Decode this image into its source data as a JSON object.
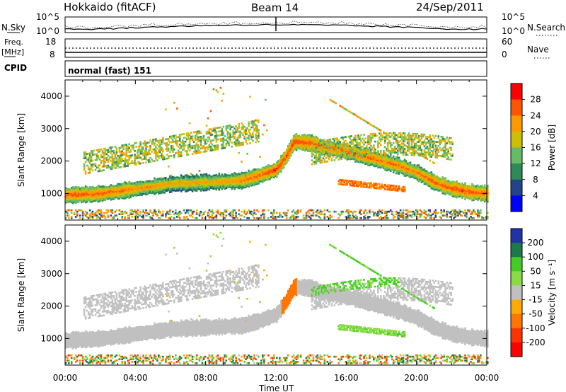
{
  "header": {
    "station": "Hokkaido (fitACF)",
    "beam": "Beam 14",
    "date": "24/Sep/2011"
  },
  "top_panels": {
    "nsky_label": "N.Sky",
    "nsearch_label": "N.Search",
    "nsky_ticks": [
      "10^5",
      "10^0"
    ],
    "nsearch_ticks": [
      "10^5",
      "10^0"
    ],
    "freq_label": "Freq.",
    "freq_unit": "[MHz]",
    "freq_ticks": [
      "18",
      "8"
    ],
    "nave_label": "Nave",
    "nave_ticks": [
      "60",
      "0"
    ],
    "cpid_label": "CPID",
    "cpid_text": "normal (fast) 151"
  },
  "colors": {
    "power_scale": [
      "#0000ff",
      "#224488",
      "#2e8b57",
      "#66bb66",
      "#ccc000",
      "#ff9900",
      "#ff5500",
      "#ff0000"
    ],
    "velocity_scale": [
      "#2233aa",
      "#1a7a4a",
      "#44cc22",
      "#88dd44",
      "#c0c0c0",
      "#ffaa00",
      "#ff7700",
      "#ff3300",
      "#ff0000"
    ]
  },
  "chart_data": [
    {
      "type": "heatmap",
      "name": "power",
      "ylabel": "Slant Range [km]",
      "xlabel": "Time UT",
      "xlim": [
        "00:00",
        "24:00"
      ],
      "ylim": [
        180,
        4500
      ],
      "x_ticks": [
        "00:00",
        "04:00",
        "08:00",
        "12:00",
        "16:00",
        "20:00",
        "00:00"
      ],
      "y_ticks": [
        1000,
        2000,
        3000,
        4000
      ],
      "colorbar": {
        "label": "Power [dB]",
        "ticks": [
          4,
          8,
          12,
          16,
          20,
          24,
          28
        ],
        "range": [
          0,
          32
        ]
      },
      "main_echo_band": {
        "x_hours": [
          0,
          2,
          4,
          6,
          8,
          10,
          11,
          12,
          12.5,
          13,
          14,
          15,
          16,
          17,
          18,
          19,
          20,
          21,
          22,
          23,
          24
        ],
        "slant_range_km": [
          950,
          1000,
          1150,
          1300,
          1350,
          1400,
          1550,
          1750,
          2100,
          2600,
          2550,
          2400,
          2300,
          2150,
          2000,
          1850,
          1650,
          1350,
          1150,
          1050,
          1000
        ],
        "power_db": [
          26,
          26,
          24,
          22,
          22,
          24,
          26,
          28,
          28,
          28,
          27,
          26,
          26,
          26,
          25,
          25,
          24,
          26,
          27,
          27,
          26
        ]
      }
    },
    {
      "type": "heatmap",
      "name": "velocity",
      "ylabel": "Slant Range [km]",
      "xlabel": "Time UT",
      "xlim": [
        "00:00",
        "24:00"
      ],
      "ylim": [
        180,
        4500
      ],
      "x_ticks": [
        "00:00",
        "04:00",
        "08:00",
        "12:00",
        "16:00",
        "20:00",
        "00:00"
      ],
      "y_ticks": [
        1000,
        2000,
        3000,
        4000
      ],
      "colorbar": {
        "label": "Velocity [m s⁻¹]",
        "ticks": [
          200,
          100,
          50,
          15,
          -15,
          -50,
          -100,
          -200
        ],
        "range": [
          -250,
          250
        ]
      }
    }
  ]
}
